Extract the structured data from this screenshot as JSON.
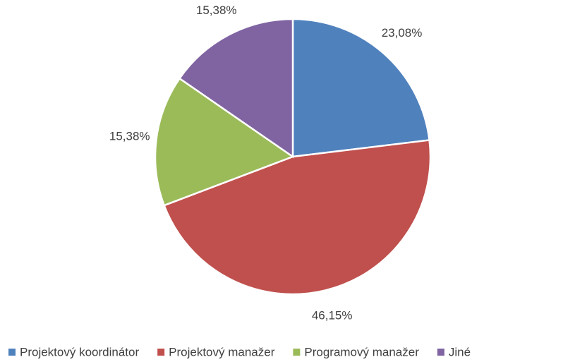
{
  "chart_data": {
    "type": "pie",
    "categories": [
      "Projektový koordinátor",
      "Projektový manažer",
      "Programový manažer",
      "Jiné"
    ],
    "values": [
      23.08,
      46.15,
      15.38,
      15.38
    ],
    "value_labels": [
      "23,08%",
      "46,15%",
      "15,38%",
      "15,38%"
    ],
    "colors": [
      "#4f81bd",
      "#c0504d",
      "#9bbb59",
      "#8064a2"
    ],
    "legend": "bottom"
  }
}
